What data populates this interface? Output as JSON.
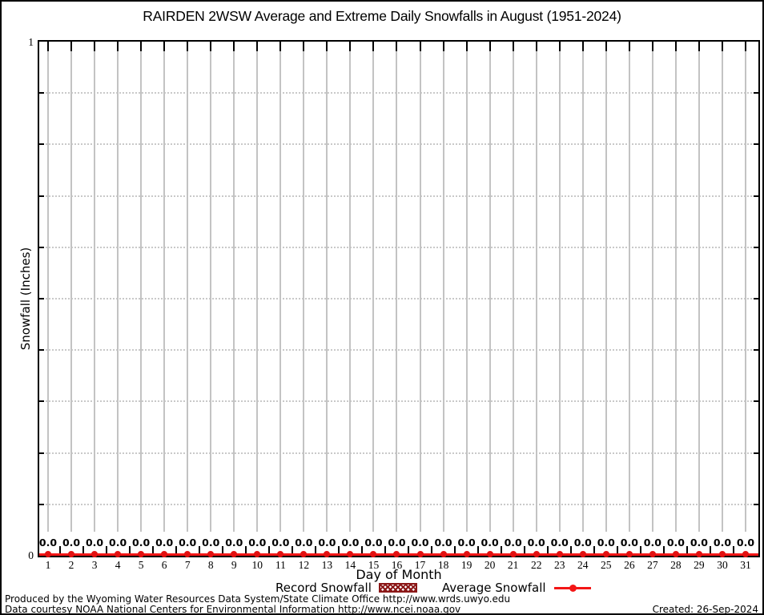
{
  "title": "RAIRDEN 2WSW Average and Extreme Daily Snowfalls in August (1951-2024)",
  "y_axis": {
    "label": "Snowfall (Inches)",
    "max_label": "1",
    "min_label": "0",
    "min": 0,
    "max": 1,
    "minor_divisions": 10
  },
  "x_axis": {
    "label": "Day of Month",
    "days": [
      1,
      2,
      3,
      4,
      5,
      6,
      7,
      8,
      9,
      10,
      11,
      12,
      13,
      14,
      15,
      16,
      17,
      18,
      19,
      20,
      21,
      22,
      23,
      24,
      25,
      26,
      27,
      28,
      29,
      30,
      31
    ]
  },
  "chart_data": {
    "type": "line",
    "title": "RAIRDEN 2WSW Average and Extreme Daily Snowfalls in August (1951-2024)",
    "xlabel": "Day of Month",
    "ylabel": "Snowfall (Inches)",
    "xlim": [
      1,
      31
    ],
    "ylim": [
      0,
      1
    ],
    "grid": true,
    "x": [
      1,
      2,
      3,
      4,
      5,
      6,
      7,
      8,
      9,
      10,
      11,
      12,
      13,
      14,
      15,
      16,
      17,
      18,
      19,
      20,
      21,
      22,
      23,
      24,
      25,
      26,
      27,
      28,
      29,
      30,
      31
    ],
    "series": [
      {
        "name": "Record Snowfall",
        "style": "hatched-bar",
        "color": "#8b1717",
        "values": [
          0.0,
          0.0,
          0.0,
          0.0,
          0.0,
          0.0,
          0.0,
          0.0,
          0.0,
          0.0,
          0.0,
          0.0,
          0.0,
          0.0,
          0.0,
          0.0,
          0.0,
          0.0,
          0.0,
          0.0,
          0.0,
          0.0,
          0.0,
          0.0,
          0.0,
          0.0,
          0.0,
          0.0,
          0.0,
          0.0,
          0.0
        ]
      },
      {
        "name": "Average Snowfall",
        "style": "line-with-point-markers",
        "color": "#f31616",
        "values": [
          0.0,
          0.0,
          0.0,
          0.0,
          0.0,
          0.0,
          0.0,
          0.0,
          0.0,
          0.0,
          0.0,
          0.0,
          0.0,
          0.0,
          0.0,
          0.0,
          0.0,
          0.0,
          0.0,
          0.0,
          0.0,
          0.0,
          0.0,
          0.0,
          0.0,
          0.0,
          0.0,
          0.0,
          0.0,
          0.0,
          0.0
        ]
      }
    ],
    "point_label_format": "0.0",
    "legend_position": "bottom-center"
  },
  "legend": {
    "record_label": "Record Snowfall",
    "average_label": "Average Snowfall"
  },
  "footer": {
    "line1": "Produced by the Wyoming Water Resources Data System/State Climate Office http://www.wrds.uwyo.edu",
    "line2": "Data courtesy NOAA National Centers for Environmental Information http://www.ncei.noaa.gov",
    "created": "Created: 26-Sep-2024"
  },
  "colors": {
    "line_red": "#f31616",
    "marker_red": "#e31111",
    "record_dark_red": "#8b1717",
    "grid_solid_gray": "#c3c3c3",
    "grid_dotted_gray": "#c9c9c9",
    "axis_black": "#000000",
    "background": "#ffffff"
  }
}
